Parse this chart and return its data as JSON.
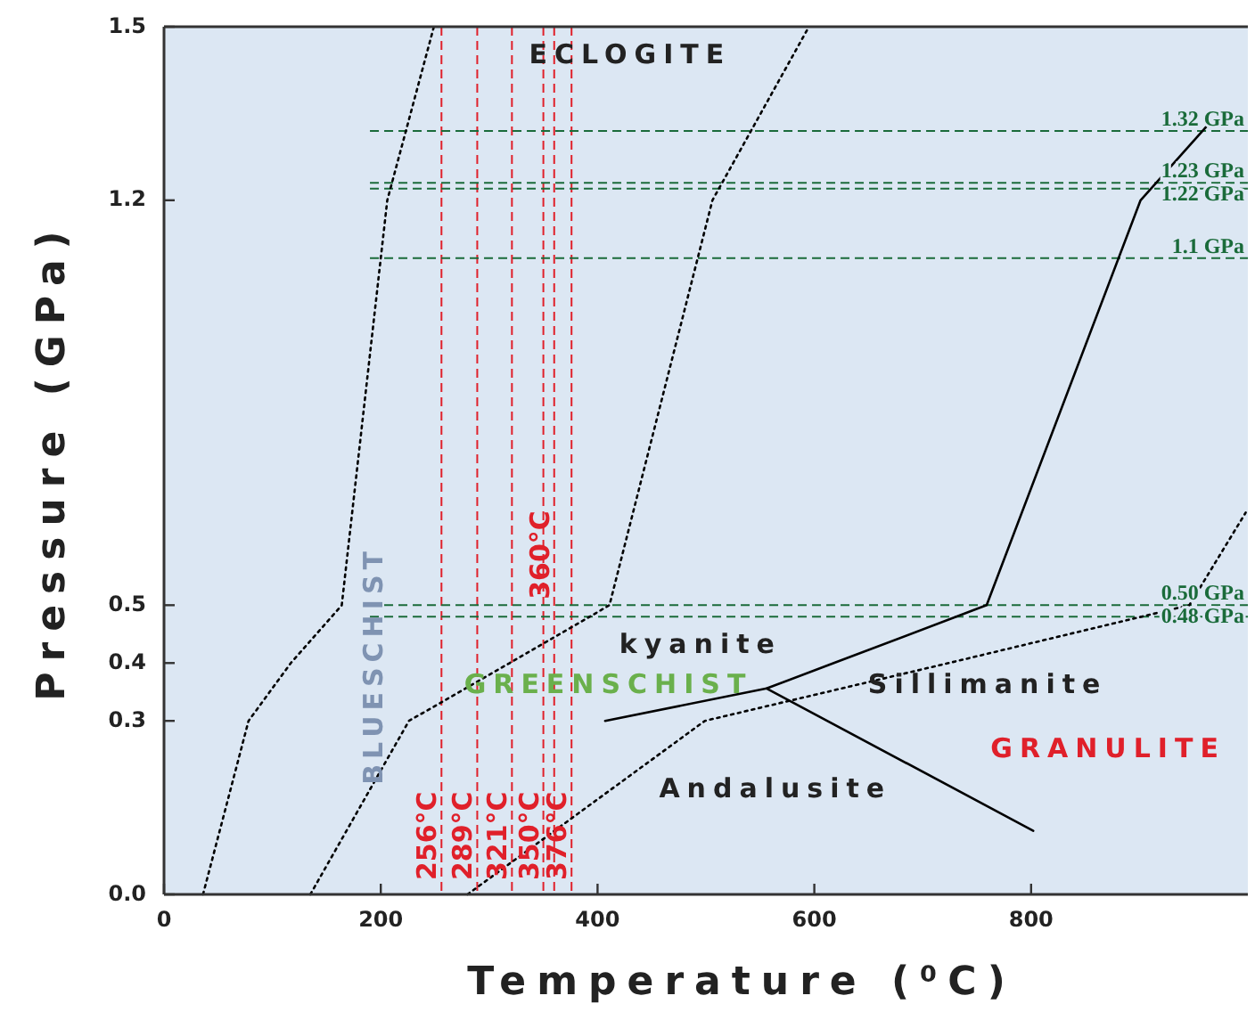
{
  "chart_data": {
    "type": "line",
    "xlabel": "Temperature (⁰C)",
    "ylabel": "Pressure (GPa)",
    "xlim": [
      0,
      1000
    ],
    "xticks": [
      0,
      200,
      400,
      600,
      800
    ],
    "ylim": [
      0,
      1.5
    ],
    "yticks": [
      {
        "value": 0,
        "label": "0.0"
      },
      0.3,
      0.4,
      0.5,
      1.2,
      1.5
    ],
    "marker": "none",
    "series": [
      {
        "color": "#000000",
        "line_style": "dotted",
        "x": [
          36,
          78,
          117,
          164,
          206,
          249
        ],
        "values": [
          0,
          0.3,
          0.4,
          0.5,
          1.2,
          1.5
        ]
      },
      {
        "color": "#000000",
        "line_style": "dotted",
        "x": [
          135,
          226,
          319,
          411,
          506,
          595
        ],
        "values": [
          0,
          0.3,
          0.4,
          0.5,
          1.2,
          1.5
        ]
      },
      {
        "color": "#000000",
        "line_style": "dotted",
        "x": [
          280,
          499,
          724,
          946,
          998
        ],
        "values": [
          0,
          0.3,
          0.4,
          0.5,
          0.66
        ]
      },
      {
        "color": "#000000",
        "line_style": "solid",
        "x": [
          407,
          556,
          618,
          759,
          901,
          963
        ],
        "values": [
          0.3,
          0.356,
          0.4,
          0.5,
          1.2,
          1.33
        ]
      },
      {
        "color": "#000000",
        "line_style": "solid",
        "x": [
          556,
          802
        ],
        "values": [
          0.356,
          0.11
        ]
      }
    ],
    "ref_lines": [
      {
        "axis": "x",
        "value": 256,
        "label": "256°C",
        "color": "#e0202a",
        "line_style": "dashed"
      },
      {
        "axis": "x",
        "value": 289,
        "label": "289°C",
        "color": "#e0202a",
        "line_style": "dashed"
      },
      {
        "axis": "x",
        "value": 321,
        "label": "321°C",
        "color": "#e0202a",
        "line_style": "dashed"
      },
      {
        "axis": "x",
        "value": 350,
        "label": "350°C",
        "color": "#e0202a",
        "line_style": "dashed"
      },
      {
        "axis": "x",
        "value": 360,
        "label": "360°C",
        "color": "#e0202a",
        "line_style": "dashed"
      },
      {
        "axis": "x",
        "value": 376,
        "label": "376°C",
        "color": "#e0202a",
        "line_style": "dashed"
      },
      {
        "axis": "y",
        "value": 1.32,
        "label": "1.32 GPa",
        "color": "#1a6b3a",
        "line_style": "dashed"
      },
      {
        "axis": "y",
        "value": 1.23,
        "label": "1.23 GPa",
        "color": "#1a6b3a",
        "line_style": "dashed"
      },
      {
        "axis": "y",
        "value": 1.22,
        "label": "1.22 GPa",
        "color": "#1a6b3a",
        "line_style": "dashed"
      },
      {
        "axis": "y",
        "value": 1.1,
        "label": "1.1 GPa",
        "color": "#1a6b3a",
        "line_style": "dashed"
      },
      {
        "axis": "y",
        "value": 0.5,
        "label": "0.50 GPa",
        "color": "#1a6b3a",
        "line_style": "dashed"
      },
      {
        "axis": "y",
        "value": 0.48,
        "label": "0.48 GPa",
        "color": "#1a6b3a",
        "line_style": "dashed"
      }
    ],
    "annotations": [
      "ECLOGITE",
      "kyanite",
      "GREENSCHIST",
      "Sillimanite",
      "BLUESCHIST",
      "Andalusite",
      "GRANULITE"
    ]
  }
}
